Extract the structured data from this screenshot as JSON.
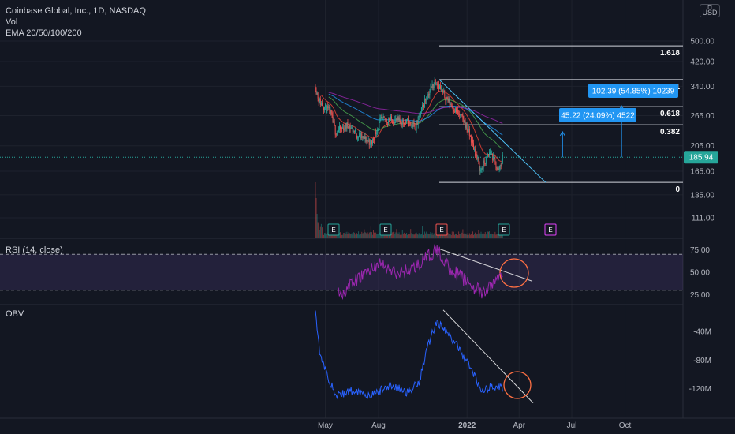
{
  "header": {
    "symbol_line": "Coinbase Global, Inc., 1D, NASDAQ",
    "vol_label": "Vol",
    "ema_label": "EMA 20/50/100/200",
    "currency": "USD"
  },
  "rsi_panel": {
    "label": "RSI (14, close)"
  },
  "obv_panel": {
    "label": "OBV"
  },
  "colors": {
    "background": "#131722",
    "candle_up": "#26a69a",
    "candle_down": "#ef5350",
    "rsi_line": "#9c27b0",
    "rsi_band": "#7e57c2",
    "obv_line": "#2962ff",
    "fib_line": "#d1d4dc",
    "trendline": "#4fc3f7",
    "callout": "#2196f3",
    "last_price": "#26a69a",
    "circle": "#ff7043"
  },
  "chart_data": [
    {
      "type": "candlestick",
      "title": "Coinbase Global, Inc., 1D, NASDAQ",
      "price_scale": "log",
      "y_tick_labels": [
        "500.00",
        "420.00",
        "340.00",
        "265.00",
        "205.00",
        "165.00",
        "135.00",
        "111.00"
      ],
      "x_tick_labels": [
        "May",
        "Aug",
        "2022",
        "Apr",
        "Jul",
        "Oct"
      ],
      "last_price": "185.94",
      "price_keypoints": [
        {
          "date": "2021-04-14",
          "price": 340
        },
        {
          "date": "2021-04-20",
          "price": 300
        },
        {
          "date": "2021-05-10",
          "price": 270
        },
        {
          "date": "2021-05-19",
          "price": 230
        },
        {
          "date": "2021-06-10",
          "price": 245
        },
        {
          "date": "2021-06-25",
          "price": 225
        },
        {
          "date": "2021-07-20",
          "price": 210
        },
        {
          "date": "2021-08-05",
          "price": 255
        },
        {
          "date": "2021-08-25",
          "price": 255
        },
        {
          "date": "2021-09-20",
          "price": 250
        },
        {
          "date": "2021-10-05",
          "price": 240
        },
        {
          "date": "2021-10-20",
          "price": 300
        },
        {
          "date": "2021-11-08",
          "price": 360
        },
        {
          "date": "2021-11-20",
          "price": 320
        },
        {
          "date": "2021-12-10",
          "price": 280
        },
        {
          "date": "2021-12-28",
          "price": 250
        },
        {
          "date": "2022-01-10",
          "price": 210
        },
        {
          "date": "2022-01-24",
          "price": 165
        },
        {
          "date": "2022-02-10",
          "price": 195
        },
        {
          "date": "2022-02-24",
          "price": 165
        },
        {
          "date": "2022-03-04",
          "price": 185.94
        }
      ],
      "fibonacci": [
        {
          "level": "1.618",
          "price": 480
        },
        {
          "level": "1",
          "price": 360
        },
        {
          "level": "0.618",
          "price": 286
        },
        {
          "level": "0.382",
          "price": 245
        },
        {
          "level": "0",
          "price": 150
        }
      ],
      "measurements": [
        {
          "label": "102.39 (54.85%) 10239",
          "from_date": "2022-09-25",
          "from_price": 186,
          "to_price": 288
        },
        {
          "label": "45.22 (24.09%) 4522",
          "from_date": "2022-06-15",
          "from_price": 186,
          "to_price": 231
        }
      ],
      "earnings_markers": [
        "E",
        "E",
        "E",
        "E",
        "E"
      ]
    },
    {
      "type": "line",
      "name": "RSI (14, close)",
      "y_tick_labels": [
        "75.00",
        "50.00",
        "25.00"
      ],
      "bands": [
        70,
        30
      ],
      "keypoints": [
        {
          "date": "2021-06-01",
          "value": 28
        },
        {
          "date": "2021-07-01",
          "value": 45
        },
        {
          "date": "2021-08-01",
          "value": 60
        },
        {
          "date": "2021-09-01",
          "value": 48
        },
        {
          "date": "2021-10-01",
          "value": 55
        },
        {
          "date": "2021-11-10",
          "value": 75
        },
        {
          "date": "2021-12-01",
          "value": 55
        },
        {
          "date": "2022-01-01",
          "value": 40
        },
        {
          "date": "2022-01-28",
          "value": 25
        },
        {
          "date": "2022-03-04",
          "value": 50
        }
      ]
    },
    {
      "type": "line",
      "name": "OBV",
      "y_tick_labels": [
        "-40M",
        "-80M",
        "-120M"
      ],
      "keypoints": [
        {
          "date": "2021-04-14",
          "value": -10
        },
        {
          "date": "2021-04-22",
          "value": -75
        },
        {
          "date": "2021-05-19",
          "value": -130
        },
        {
          "date": "2021-06-20",
          "value": -122
        },
        {
          "date": "2021-07-20",
          "value": -130
        },
        {
          "date": "2021-08-20",
          "value": -115
        },
        {
          "date": "2021-09-20",
          "value": -125
        },
        {
          "date": "2021-10-10",
          "value": -110
        },
        {
          "date": "2021-10-25",
          "value": -60
        },
        {
          "date": "2021-11-10",
          "value": -25
        },
        {
          "date": "2021-12-15",
          "value": -60
        },
        {
          "date": "2022-01-10",
          "value": -95
        },
        {
          "date": "2022-01-28",
          "value": -125
        },
        {
          "date": "2022-02-15",
          "value": -115
        },
        {
          "date": "2022-03-04",
          "value": -120
        }
      ]
    }
  ]
}
